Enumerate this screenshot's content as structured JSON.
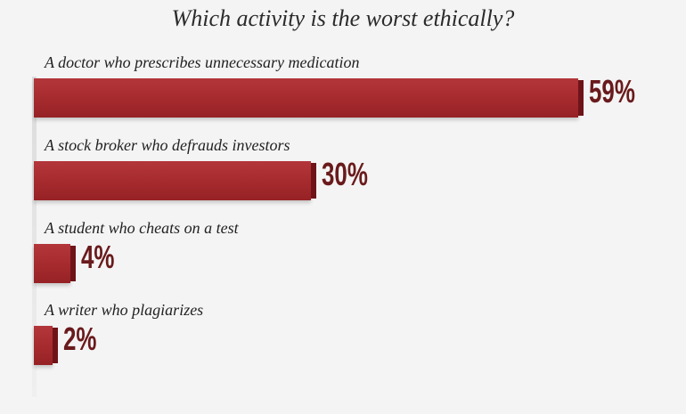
{
  "chart_data": {
    "type": "bar",
    "orientation": "horizontal",
    "title": "Which activity is the worst ethically?",
    "categories": [
      "A doctor who prescribes unnecessary medication",
      "A stock broker who defrauds investors",
      "A student who cheats on a test",
      "A writer who plagiarizes"
    ],
    "values": [
      59,
      30,
      4,
      2
    ],
    "value_labels": [
      "59%",
      "30%",
      "4%",
      "2%"
    ],
    "unit": "%",
    "bar_color": "#a52a2e",
    "label_color": "#6a1a1c",
    "grid": false,
    "legend": "none"
  }
}
